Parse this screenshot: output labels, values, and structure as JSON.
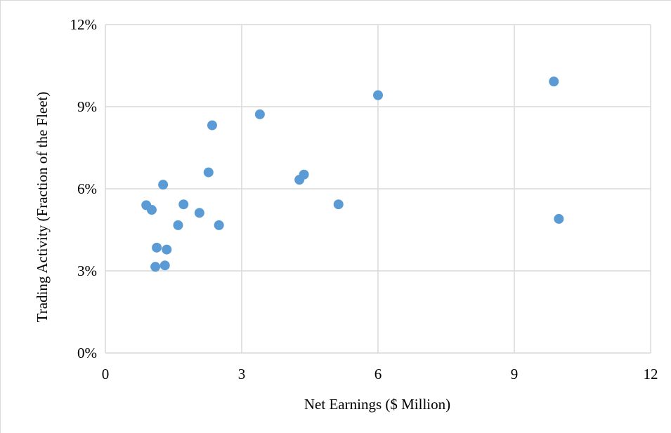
{
  "chart_data": {
    "type": "scatter",
    "xlabel": "Net Earnings ($ Million)",
    "ylabel": "Trading Activity (Fraction of the Fleet)",
    "xlim": [
      0,
      12
    ],
    "ylim": [
      0,
      12
    ],
    "x_ticks": [
      0,
      3,
      6,
      9,
      12
    ],
    "x_tick_labels": [
      "0",
      "3",
      "6",
      "9",
      "12"
    ],
    "y_ticks": [
      0,
      3,
      6,
      9,
      12
    ],
    "y_tick_labels": [
      "0%",
      "3%",
      "6%",
      "9%",
      "12%"
    ],
    "grid": true,
    "marker_color": "#5b9bd5",
    "points": [
      {
        "x": 0.9,
        "y": 5.4
      },
      {
        "x": 1.02,
        "y": 5.23
      },
      {
        "x": 1.1,
        "y": 3.15
      },
      {
        "x": 1.13,
        "y": 3.85
      },
      {
        "x": 1.27,
        "y": 6.15
      },
      {
        "x": 1.31,
        "y": 3.2
      },
      {
        "x": 1.35,
        "y": 3.78
      },
      {
        "x": 1.6,
        "y": 4.67
      },
      {
        "x": 1.72,
        "y": 5.43
      },
      {
        "x": 2.07,
        "y": 5.12
      },
      {
        "x": 2.27,
        "y": 6.6
      },
      {
        "x": 2.35,
        "y": 8.32
      },
      {
        "x": 2.5,
        "y": 4.67
      },
      {
        "x": 3.4,
        "y": 8.72
      },
      {
        "x": 4.27,
        "y": 6.33
      },
      {
        "x": 4.37,
        "y": 6.52
      },
      {
        "x": 5.13,
        "y": 5.43
      },
      {
        "x": 6.0,
        "y": 9.42
      },
      {
        "x": 9.87,
        "y": 9.92
      },
      {
        "x": 9.98,
        "y": 4.9
      }
    ]
  }
}
